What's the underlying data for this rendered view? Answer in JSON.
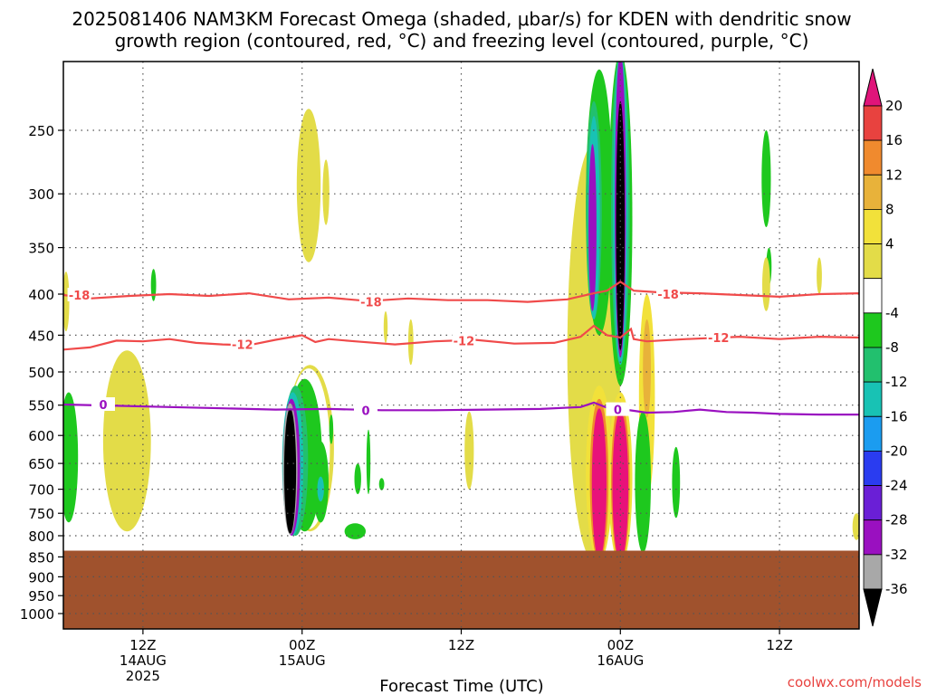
{
  "chart_data": {
    "type": "heatmap",
    "title_lines": [
      "2025081406 NAM3KM Forecast Omega (shaded, μbar/s) for KDEN with dendritic snow",
      "growth region (contoured, red, °C) and freezing level (contoured, purple, °C)"
    ],
    "xlabel": "Forecast Time (UTC)",
    "credit": "coolwx.com/models",
    "x_range_hours": [
      6,
      66
    ],
    "x_ticks": [
      {
        "h": 12,
        "lines": [
          "12Z",
          "14AUG",
          "2025"
        ]
      },
      {
        "h": 24,
        "lines": [
          "00Z",
          "15AUG"
        ]
      },
      {
        "h": 36,
        "lines": [
          "12Z"
        ]
      },
      {
        "h": 48,
        "lines": [
          "00Z",
          "16AUG"
        ]
      },
      {
        "h": 60,
        "lines": [
          "12Z"
        ]
      }
    ],
    "y_scale": "log-pressure",
    "y_range_hpa": [
      205,
      1050
    ],
    "y_ticks": [
      250,
      300,
      350,
      400,
      450,
      500,
      550,
      600,
      650,
      700,
      750,
      800,
      850,
      900,
      950,
      1000
    ],
    "ground_top_hpa": 835,
    "ground_color": "#a0522d",
    "colorbar": {
      "labels": [
        "20",
        "16",
        "12",
        "8",
        "4",
        "-4",
        "-8",
        "-12",
        "-16",
        "-20",
        "-24",
        "-28",
        "-32",
        "-36"
      ],
      "colors_top_to_bottom": [
        "#e8423f",
        "#f08a2e",
        "#e8b23a",
        "#f2e13a",
        "#e3dc48",
        "#ffffff",
        "#1ec81e",
        "#22c06e",
        "#18c2b4",
        "#1b9cf0",
        "#2a3cf0",
        "#6a1fd6",
        "#9a10c0",
        "#a8a8a8"
      ],
      "top_arrow_color": "#e0147a",
      "bottom_arrow_color": "#000000"
    },
    "contours": [
      {
        "name": "dendritic -18",
        "level": -18,
        "color": "#f04a4a",
        "points": [
          [
            6,
            401
          ],
          [
            8,
            405
          ],
          [
            11,
            402
          ],
          [
            14,
            400
          ],
          [
            17,
            402
          ],
          [
            20,
            399
          ],
          [
            23,
            406
          ],
          [
            26,
            404
          ],
          [
            29,
            408
          ],
          [
            32,
            405
          ],
          [
            35,
            407
          ],
          [
            38,
            407
          ],
          [
            41,
            409
          ],
          [
            44,
            406
          ],
          [
            46,
            399
          ],
          [
            47,
            396
          ],
          [
            48,
            386
          ],
          [
            49,
            396
          ],
          [
            51,
            398
          ],
          [
            54,
            399
          ],
          [
            57,
            401
          ],
          [
            60,
            403
          ],
          [
            63,
            400
          ],
          [
            66,
            399
          ]
        ],
        "labels": [
          [
            7.2,
            401
          ],
          [
            29.2,
            409
          ],
          [
            51.6,
            400
          ]
        ]
      },
      {
        "name": "dendritic -12",
        "level": -12,
        "color": "#f04a4a",
        "points": [
          [
            6,
            469
          ],
          [
            8,
            466
          ],
          [
            10,
            457
          ],
          [
            12,
            458
          ],
          [
            14,
            455
          ],
          [
            16,
            460
          ],
          [
            18,
            462
          ],
          [
            20,
            463
          ],
          [
            22,
            456
          ],
          [
            24,
            450
          ],
          [
            25,
            459
          ],
          [
            26,
            455
          ],
          [
            28,
            458
          ],
          [
            31,
            462
          ],
          [
            34,
            458
          ],
          [
            37,
            456
          ],
          [
            40,
            461
          ],
          [
            43,
            460
          ],
          [
            45,
            452
          ],
          [
            46,
            438
          ],
          [
            47,
            450
          ],
          [
            48,
            453
          ],
          [
            48.8,
            442
          ],
          [
            49,
            455
          ],
          [
            50,
            458
          ],
          [
            53,
            455
          ],
          [
            57,
            452
          ],
          [
            60,
            455
          ],
          [
            63,
            452
          ],
          [
            66,
            453
          ]
        ],
        "labels": [
          [
            19.5,
            462
          ],
          [
            36.2,
            457
          ],
          [
            55.4,
            453
          ]
        ]
      },
      {
        "name": "freezing level 0",
        "level": 0,
        "color": "#9a10c0",
        "points": [
          [
            6,
            549
          ],
          [
            10,
            551
          ],
          [
            14,
            553
          ],
          [
            18,
            555
          ],
          [
            22,
            557
          ],
          [
            26,
            556
          ],
          [
            30,
            558
          ],
          [
            34,
            558
          ],
          [
            38,
            557
          ],
          [
            42,
            556
          ],
          [
            45,
            553
          ],
          [
            46,
            546
          ],
          [
            47,
            554
          ],
          [
            48,
            556
          ],
          [
            50,
            562
          ],
          [
            52,
            561
          ],
          [
            54,
            557
          ],
          [
            56,
            561
          ],
          [
            58,
            562
          ],
          [
            60,
            564
          ],
          [
            63,
            565
          ],
          [
            66,
            565
          ]
        ],
        "labels": [
          [
            9.0,
            549
          ],
          [
            28.8,
            558
          ],
          [
            47.8,
            557
          ]
        ]
      }
    ],
    "omega_blobs": [
      {
        "name": "westerly updraft left",
        "layers": [
          {
            "v": 4,
            "cx": 10.8,
            "cy": 630,
            "rx": 1.8,
            "ry": 160
          }
        ]
      },
      {
        "name": "left edge green",
        "layers": [
          {
            "v": -8,
            "cx": 6.4,
            "cy": 650,
            "rx": 0.7,
            "ry": 120
          }
        ]
      },
      {
        "name": "upper yellow 23Z",
        "layers": [
          {
            "v": 4,
            "cx": 24.5,
            "cy": 300,
            "rx": 0.9,
            "ry": 65
          }
        ]
      },
      {
        "name": "upper yellow 26Z",
        "layers": [
          {
            "v": 4,
            "cx": 25.8,
            "cy": 300,
            "rx": 0.25,
            "ry": 28
          }
        ]
      },
      {
        "name": "15AUG 00Z updraft",
        "layers": [
          {
            "v": 4,
            "cx": 24.6,
            "cy": 640,
            "rx": 1.8,
            "ry": 150
          },
          {
            "v": -4,
            "cx": 24.5,
            "cy": 640,
            "rx": 1.6,
            "ry": 145
          },
          {
            "v": -8,
            "cx": 24.2,
            "cy": 650,
            "rx": 1.3,
            "ry": 140
          },
          {
            "v": -12,
            "cx": 23.5,
            "cy": 660,
            "rx": 0.95,
            "ry": 140
          },
          {
            "v": -16,
            "cx": 23.3,
            "cy": 665,
            "rx": 0.8,
            "ry": 135
          },
          {
            "v": -24,
            "cx": 23.2,
            "cy": 670,
            "rx": 0.65,
            "ry": 130
          },
          {
            "v": -32,
            "cx": 23.1,
            "cy": 672,
            "rx": 0.55,
            "ry": 125
          },
          {
            "v": -36,
            "cx": 23.1,
            "cy": 675,
            "rx": 0.45,
            "ry": 120
          }
        ]
      },
      {
        "name": "15AUG 01Z secondary",
        "layers": [
          {
            "v": -8,
            "cx": 25.4,
            "cy": 690,
            "rx": 0.6,
            "ry": 80
          },
          {
            "v": -16,
            "cx": 25.4,
            "cy": 700,
            "rx": 0.25,
            "ry": 25
          }
        ]
      },
      {
        "name": "green 04Z low",
        "layers": [
          {
            "v": -8,
            "cx": 28.0,
            "cy": 790,
            "rx": 0.8,
            "ry": 18
          }
        ]
      },
      {
        "name": "green 06Z small",
        "layers": [
          {
            "v": -8,
            "cx": 30.0,
            "cy": 690,
            "rx": 0.2,
            "ry": 12
          }
        ]
      },
      {
        "name": "green 05Z",
        "layers": [
          {
            "v": -8,
            "cx": 29.0,
            "cy": 650,
            "rx": 0.15,
            "ry": 60
          }
        ]
      },
      {
        "name": "yellow 08Z",
        "layers": [
          {
            "v": 4,
            "cx": 32.2,
            "cy": 460,
            "rx": 0.2,
            "ry": 30
          }
        ]
      },
      {
        "name": "yellow 06Z",
        "layers": [
          {
            "v": 4,
            "cx": 30.3,
            "cy": 440,
            "rx": 0.15,
            "ry": 20
          }
        ]
      },
      {
        "name": "yellow 17Z",
        "layers": [
          {
            "v": 4,
            "cx": 36.6,
            "cy": 630,
            "rx": 0.35,
            "ry": 70
          }
        ]
      },
      {
        "name": "16AUG 00Z convection",
        "layers": [
          {
            "v": 4,
            "cx": 46.0,
            "cy": 560,
            "rx": 2.0,
            "ry": 300
          },
          {
            "v": -8,
            "cx": 46.4,
            "cy": 330,
            "rx": 1.0,
            "ry": 120
          },
          {
            "v": -12,
            "cx": 46.0,
            "cy": 330,
            "rx": 0.6,
            "ry": 100
          },
          {
            "v": -16,
            "cx": 46.0,
            "cy": 335,
            "rx": 0.45,
            "ry": 95
          },
          {
            "v": -24,
            "cx": 45.9,
            "cy": 340,
            "rx": 0.3,
            "ry": 80
          },
          {
            "v": -8,
            "cx": 48.0,
            "cy": 320,
            "rx": 0.9,
            "ry": 200
          },
          {
            "v": -12,
            "cx": 48.0,
            "cy": 320,
            "rx": 0.7,
            "ry": 170
          },
          {
            "v": -16,
            "cx": 48.0,
            "cy": 330,
            "rx": 0.55,
            "ry": 160
          },
          {
            "v": -24,
            "cx": 48.0,
            "cy": 340,
            "rx": 0.42,
            "ry": 140
          },
          {
            "v": -36,
            "cx": 48.0,
            "cy": 350,
            "rx": 0.33,
            "ry": 120
          },
          {
            "v": 8,
            "cx": 46.4,
            "cy": 690,
            "rx": 1.0,
            "ry": 170
          },
          {
            "v": 16,
            "cx": 46.4,
            "cy": 700,
            "rx": 0.7,
            "ry": 160
          },
          {
            "v": 24,
            "cx": 46.4,
            "cy": 705,
            "rx": 0.55,
            "ry": 150
          },
          {
            "v": 8,
            "cx": 48.0,
            "cy": 700,
            "rx": 0.9,
            "ry": 170
          },
          {
            "v": 16,
            "cx": 48.0,
            "cy": 705,
            "rx": 0.7,
            "ry": 160
          },
          {
            "v": 24,
            "cx": 48.0,
            "cy": 710,
            "rx": 0.6,
            "ry": 150
          },
          {
            "v": 8,
            "cx": 50.0,
            "cy": 560,
            "rx": 0.6,
            "ry": 160
          },
          {
            "v": 12,
            "cx": 50.0,
            "cy": 500,
            "rx": 0.3,
            "ry": 70
          }
        ]
      },
      {
        "name": "green 02Z 16AUG",
        "layers": [
          {
            "v": -8,
            "cx": 49.7,
            "cy": 700,
            "rx": 0.6,
            "ry": 140
          }
        ]
      },
      {
        "name": "green 06Z 16AUG",
        "layers": [
          {
            "v": -8,
            "cx": 52.2,
            "cy": 690,
            "rx": 0.3,
            "ry": 70
          }
        ]
      },
      {
        "name": "green 11Z upper",
        "layers": [
          {
            "v": -8,
            "cx": 59.0,
            "cy": 290,
            "rx": 0.35,
            "ry": 40
          }
        ]
      },
      {
        "name": "green 11Z 400",
        "layers": [
          {
            "v": -8,
            "cx": 59.2,
            "cy": 370,
            "rx": 0.2,
            "ry": 20
          }
        ]
      },
      {
        "name": "yellow 11Z",
        "layers": [
          {
            "v": 4,
            "cx": 59.0,
            "cy": 390,
            "rx": 0.3,
            "ry": 30
          }
        ]
      },
      {
        "name": "yellow 63Z",
        "layers": [
          {
            "v": 4,
            "cx": 63.0,
            "cy": 380,
            "rx": 0.2,
            "ry": 20
          }
        ]
      },
      {
        "name": "yellow right edge",
        "layers": [
          {
            "v": 4,
            "cx": 65.8,
            "cy": 780,
            "rx": 0.3,
            "ry": 30
          }
        ]
      },
      {
        "name": "green 17Z left",
        "layers": [
          {
            "v": -8,
            "cx": 12.8,
            "cy": 390,
            "rx": 0.2,
            "ry": 18
          }
        ]
      },
      {
        "name": "yellow left top",
        "layers": [
          {
            "v": 4,
            "cx": 6.2,
            "cy": 410,
            "rx": 0.25,
            "ry": 35
          }
        ]
      },
      {
        "name": "green 2Z small",
        "layers": [
          {
            "v": -8,
            "cx": 26.2,
            "cy": 590,
            "rx": 0.15,
            "ry": 25
          }
        ]
      },
      {
        "name": "green 04Z",
        "layers": [
          {
            "v": -8,
            "cx": 28.2,
            "cy": 680,
            "rx": 0.25,
            "ry": 30
          }
        ]
      }
    ]
  }
}
